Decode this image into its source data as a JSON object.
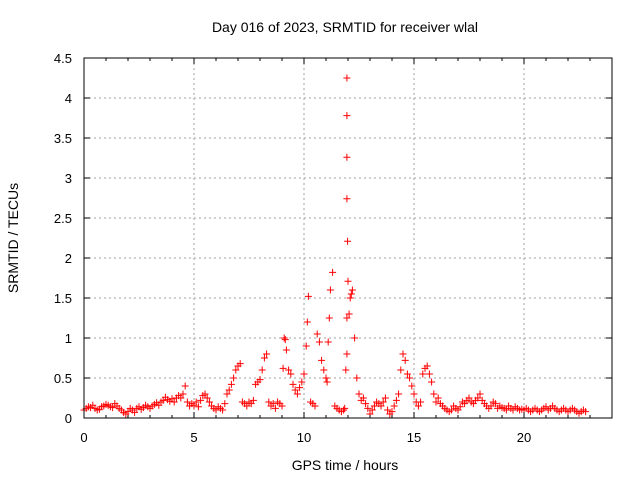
{
  "chart_data": {
    "type": "scatter",
    "title": "Day 016 of 2023, SRMTID for receiver wlal",
    "xlabel": "GPS time / hours",
    "ylabel": "SRMTID / TECUs",
    "xlim": [
      0,
      24
    ],
    "ylim": [
      0,
      4.5
    ],
    "grid": true,
    "marker": "+",
    "color": "#ff0000",
    "x_ticks": [
      0,
      5,
      10,
      15,
      20
    ],
    "x_tick_labels": [
      "0",
      "5",
      "10",
      "15",
      "20"
    ],
    "y_ticks": [
      0,
      0.5,
      1,
      1.5,
      2,
      2.5,
      3,
      3.5,
      4,
      4.5
    ],
    "y_tick_labels": [
      "0",
      "0.5",
      "1",
      "1.5",
      "2",
      "2.5",
      "3",
      "3.5",
      "4",
      "4.5"
    ],
    "series": [
      {
        "name": "SRMTID",
        "x": [
          0.0,
          0.1,
          0.2,
          0.3,
          0.4,
          0.5,
          0.6,
          0.7,
          0.8,
          0.9,
          1.0,
          1.1,
          1.2,
          1.3,
          1.4,
          1.5,
          1.6,
          1.7,
          1.8,
          1.9,
          2.0,
          2.1,
          2.2,
          2.3,
          2.4,
          2.5,
          2.6,
          2.7,
          2.8,
          2.9,
          3.0,
          3.1,
          3.2,
          3.3,
          3.4,
          3.5,
          3.6,
          3.7,
          3.8,
          3.9,
          4.0,
          4.1,
          4.2,
          4.3,
          4.4,
          4.5,
          4.6,
          4.7,
          4.8,
          4.9,
          5.0,
          5.1,
          5.2,
          5.3,
          5.4,
          5.5,
          5.6,
          5.7,
          5.8,
          5.9,
          6.0,
          6.1,
          6.2,
          6.3,
          6.4,
          6.5,
          6.6,
          6.7,
          6.8,
          6.9,
          7.0,
          7.1,
          7.2,
          7.3,
          7.4,
          7.5,
          7.6,
          7.7,
          7.8,
          7.9,
          8.0,
          8.1,
          8.2,
          8.3,
          8.4,
          8.5,
          8.6,
          8.7,
          8.8,
          8.9,
          9.0,
          9.05,
          9.1,
          9.15,
          9.2,
          9.3,
          9.4,
          9.5,
          9.6,
          9.7,
          9.8,
          9.9,
          10.0,
          10.1,
          10.15,
          10.2,
          10.3,
          10.4,
          10.5,
          10.6,
          10.7,
          10.8,
          10.9,
          11.0,
          11.05,
          11.1,
          11.15,
          11.2,
          11.3,
          11.4,
          11.5,
          11.6,
          11.7,
          11.8,
          11.85,
          11.9,
          11.95,
          11.95,
          11.95,
          11.95,
          11.95,
          11.95,
          11.98,
          12.0,
          12.05,
          12.1,
          12.15,
          12.2,
          12.3,
          12.4,
          12.5,
          12.6,
          12.7,
          12.8,
          12.9,
          13.0,
          13.1,
          13.2,
          13.3,
          13.4,
          13.5,
          13.6,
          13.7,
          13.8,
          13.9,
          14.0,
          14.1,
          14.2,
          14.3,
          14.4,
          14.5,
          14.6,
          14.7,
          14.8,
          14.9,
          15.0,
          15.1,
          15.2,
          15.3,
          15.4,
          15.5,
          15.6,
          15.7,
          15.8,
          15.9,
          16.0,
          16.1,
          16.2,
          16.3,
          16.4,
          16.5,
          16.6,
          16.7,
          16.8,
          16.9,
          17.0,
          17.1,
          17.2,
          17.3,
          17.4,
          17.5,
          17.6,
          17.7,
          17.8,
          17.9,
          18.0,
          18.1,
          18.2,
          18.3,
          18.4,
          18.5,
          18.6,
          18.7,
          18.8,
          18.9,
          19.0,
          19.1,
          19.2,
          19.3,
          19.4,
          19.5,
          19.6,
          19.7,
          19.8,
          19.9,
          20.0,
          20.1,
          20.2,
          20.3,
          20.4,
          20.5,
          20.6,
          20.7,
          20.8,
          20.9,
          21.0,
          21.1,
          21.2,
          21.3,
          21.4,
          21.5,
          21.6,
          21.7,
          21.8,
          21.9,
          22.0,
          22.1,
          22.2,
          22.3,
          22.4,
          22.5,
          22.6,
          22.7,
          22.8
        ],
        "y": [
          0.1,
          0.12,
          0.14,
          0.13,
          0.16,
          0.12,
          0.1,
          0.11,
          0.14,
          0.15,
          0.17,
          0.16,
          0.14,
          0.13,
          0.18,
          0.15,
          0.12,
          0.1,
          0.07,
          0.05,
          0.08,
          0.12,
          0.1,
          0.07,
          0.12,
          0.14,
          0.11,
          0.13,
          0.16,
          0.14,
          0.12,
          0.15,
          0.17,
          0.19,
          0.16,
          0.2,
          0.22,
          0.26,
          0.23,
          0.21,
          0.24,
          0.2,
          0.25,
          0.28,
          0.25,
          0.3,
          0.4,
          0.2,
          0.15,
          0.18,
          0.16,
          0.2,
          0.14,
          0.22,
          0.28,
          0.3,
          0.25,
          0.2,
          0.15,
          0.12,
          0.1,
          0.14,
          0.12,
          0.1,
          0.18,
          0.3,
          0.35,
          0.42,
          0.5,
          0.6,
          0.65,
          0.68,
          0.2,
          0.18,
          0.15,
          0.2,
          0.18,
          0.22,
          0.42,
          0.45,
          0.48,
          0.6,
          0.75,
          0.8,
          0.2,
          0.15,
          0.18,
          0.12,
          0.2,
          0.18,
          0.15,
          0.62,
          1.0,
          0.98,
          0.85,
          0.6,
          0.55,
          0.42,
          0.35,
          0.3,
          0.38,
          0.45,
          0.55,
          0.9,
          1.2,
          1.52,
          0.2,
          0.18,
          0.15,
          1.05,
          0.95,
          0.72,
          0.6,
          0.5,
          0.45,
          0.95,
          1.25,
          1.6,
          1.82,
          0.15,
          0.12,
          0.1,
          0.08,
          0.1,
          0.12,
          0.6,
          0.8,
          1.25,
          4.25,
          3.78,
          3.26,
          2.74,
          2.21,
          1.71,
          1.3,
          1.5,
          1.55,
          1.6,
          1.0,
          0.5,
          0.3,
          0.22,
          0.25,
          0.18,
          0.12,
          0.05,
          0.1,
          0.15,
          0.2,
          0.18,
          0.15,
          0.2,
          0.25,
          0.1,
          0.05,
          0.08,
          0.15,
          0.22,
          0.3,
          0.6,
          0.8,
          0.72,
          0.55,
          0.5,
          0.4,
          0.3,
          0.2,
          0.15,
          0.2,
          0.55,
          0.62,
          0.65,
          0.55,
          0.45,
          0.3,
          0.2,
          0.25,
          0.18,
          0.15,
          0.12,
          0.1,
          0.08,
          0.1,
          0.15,
          0.12,
          0.1,
          0.14,
          0.2,
          0.18,
          0.22,
          0.25,
          0.2,
          0.18,
          0.22,
          0.25,
          0.3,
          0.22,
          0.18,
          0.15,
          0.12,
          0.15,
          0.2,
          0.18,
          0.12,
          0.15,
          0.13,
          0.12,
          0.1,
          0.15,
          0.12,
          0.1,
          0.14,
          0.12,
          0.1,
          0.11,
          0.1,
          0.12,
          0.1,
          0.08,
          0.1,
          0.12,
          0.1,
          0.08,
          0.1,
          0.12,
          0.14,
          0.1,
          0.12,
          0.15,
          0.12,
          0.1,
          0.08,
          0.1,
          0.12,
          0.1,
          0.08,
          0.1,
          0.12,
          0.1,
          0.08,
          0.06,
          0.08,
          0.1,
          0.08
        ]
      }
    ]
  }
}
